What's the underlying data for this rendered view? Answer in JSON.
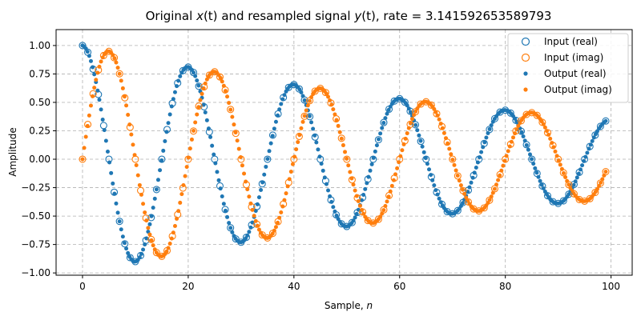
{
  "chart_data": {
    "type": "scatter",
    "title_parts": [
      "Original ",
      "x",
      "(t)",
      " and resampled signal ",
      "y",
      "(t)",
      ", rate = ",
      "3.141592653589793"
    ],
    "xlabel_parts": [
      "Sample, ",
      "n"
    ],
    "ylabel": "Amplitude",
    "xlim": [
      -5,
      104
    ],
    "ylim": [
      -1.02,
      1.14
    ],
    "xticks": [
      0,
      20,
      40,
      60,
      80,
      100
    ],
    "yticks": [
      -1.0,
      -0.75,
      -0.5,
      -0.25,
      0.0,
      0.25,
      0.5,
      0.75,
      1.0
    ],
    "xtick_labels": [
      "0",
      "20",
      "40",
      "60",
      "80",
      "100"
    ],
    "ytick_labels": [
      "−1.00",
      "−0.75",
      "−0.50",
      "−0.25",
      "0.00",
      "0.25",
      "0.50",
      "0.75",
      "1.00"
    ],
    "grid": true,
    "legend_position": "top-right",
    "signal": {
      "frequency_cycles_per_sample": 0.05,
      "decay_per_sample": 0.0105,
      "input_samples": 100,
      "input_step": 1,
      "output_step": 0.3183098861837907
    },
    "series": [
      {
        "name": "Input (real)",
        "color": "#1f77b4",
        "marker": "open-circle",
        "component": "real",
        "source": "input"
      },
      {
        "name": "Input (imag)",
        "color": "#ff7f0e",
        "marker": "open-circle",
        "component": "imag",
        "source": "input"
      },
      {
        "name": "Output (real)",
        "color": "#1f77b4",
        "marker": "dot",
        "component": "real",
        "source": "output"
      },
      {
        "name": "Output (imag)",
        "color": "#ff7f0e",
        "marker": "dot",
        "component": "imag",
        "source": "output"
      }
    ]
  }
}
